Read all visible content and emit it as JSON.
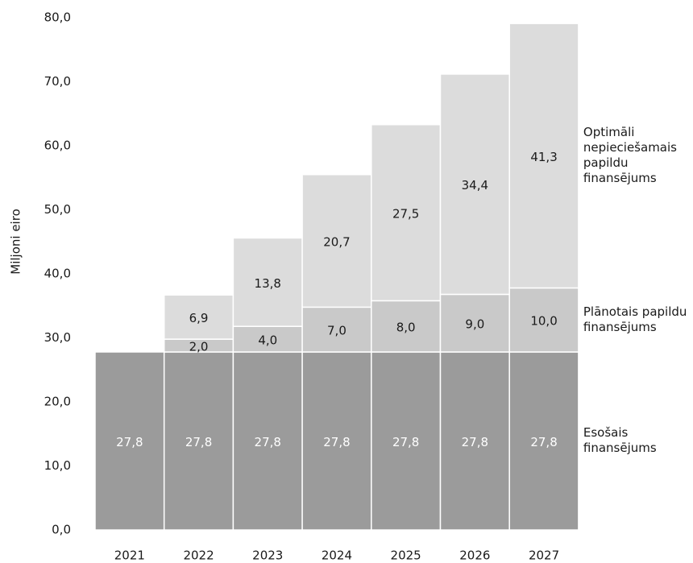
{
  "chart_data": {
    "type": "stacked_bar",
    "y_label": "Miljoni eiro",
    "categories": [
      "2021",
      "2022",
      "2023",
      "2024",
      "2025",
      "2026",
      "2027"
    ],
    "series": [
      {
        "name": "Esošais finansējums",
        "color": "#9b9b9b",
        "label_color": "#ffffff",
        "values": [
          27.8,
          27.8,
          27.8,
          27.8,
          27.8,
          27.8,
          27.8
        ],
        "value_labels": [
          "27,8",
          "27,8",
          "27,8",
          "27,8",
          "27,8",
          "27,8",
          "27,8"
        ]
      },
      {
        "name": "Plānotais papildu finansējums",
        "color": "#c9c9c9",
        "label_color": "#1a1a1a",
        "values": [
          null,
          2.0,
          4.0,
          7.0,
          8.0,
          9.0,
          10.0
        ],
        "value_labels": [
          null,
          "2,0",
          "4,0",
          "7,0",
          "8,0",
          "9,0",
          "10,0"
        ]
      },
      {
        "name": "Optimāli nepieciešamais papildu finansējums",
        "color": "#dcdcdc",
        "label_color": "#1a1a1a",
        "values": [
          null,
          6.9,
          13.8,
          20.7,
          27.5,
          34.4,
          41.3
        ],
        "value_labels": [
          null,
          "6,9",
          "13,8",
          "20,7",
          "27,5",
          "34,4",
          "41,3"
        ]
      }
    ],
    "ylim": [
      0,
      80
    ],
    "yticks": [
      {
        "value": 0,
        "label": "0,0"
      },
      {
        "value": 10,
        "label": "10,0"
      },
      {
        "value": 20,
        "label": "20,0"
      },
      {
        "value": 30,
        "label": "30,0"
      },
      {
        "value": 40,
        "label": "40,0"
      },
      {
        "value": 50,
        "label": "50,0"
      },
      {
        "value": 60,
        "label": "60,0"
      },
      {
        "value": 70,
        "label": "70,0"
      },
      {
        "value": 80,
        "label": "80,0"
      }
    ]
  }
}
